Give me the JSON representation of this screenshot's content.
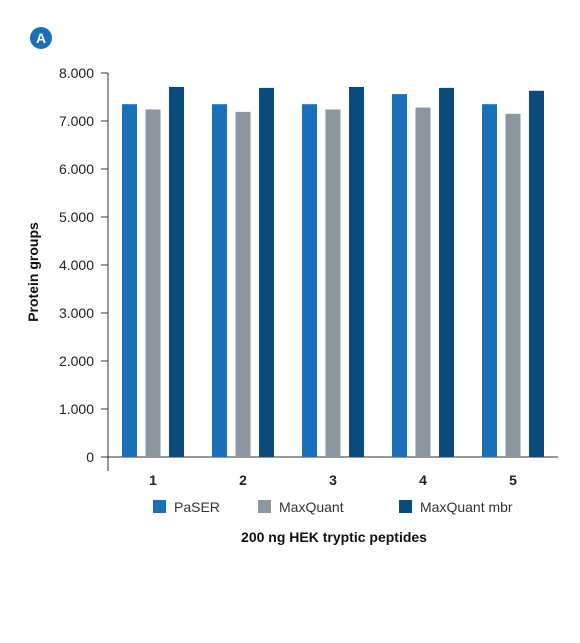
{
  "panel_label": "A",
  "colors": {
    "PaSER": "#1a6fb8",
    "MaxQuant": "#8c969e",
    "MaxQuant mbr": "#0b4a7d",
    "badge": "#1a6fb8",
    "axis": "#333333"
  },
  "chart_data": {
    "type": "bar",
    "title": "",
    "xlabel": "200 ng HEK tryptic peptides",
    "ylabel": "Protein groups",
    "categories": [
      "1",
      "2",
      "3",
      "4",
      "5"
    ],
    "series": [
      {
        "name": "PaSER",
        "values": [
          7350,
          7350,
          7350,
          7560,
          7350
        ]
      },
      {
        "name": "MaxQuant",
        "values": [
          7240,
          7190,
          7240,
          7280,
          7150
        ]
      },
      {
        "name": "MaxQuant mbr",
        "values": [
          7710,
          7690,
          7710,
          7690,
          7630
        ]
      }
    ],
    "ylim": [
      0,
      8000
    ],
    "yticks": [
      0,
      1000,
      2000,
      3000,
      4000,
      5000,
      6000,
      7000,
      8000
    ],
    "ytick_labels": [
      "0",
      "1.000",
      "2.000",
      "3.000",
      "4.000",
      "5.000",
      "6.000",
      "7.000",
      "8.000"
    ],
    "grid": false,
    "legend_position": "bottom"
  }
}
